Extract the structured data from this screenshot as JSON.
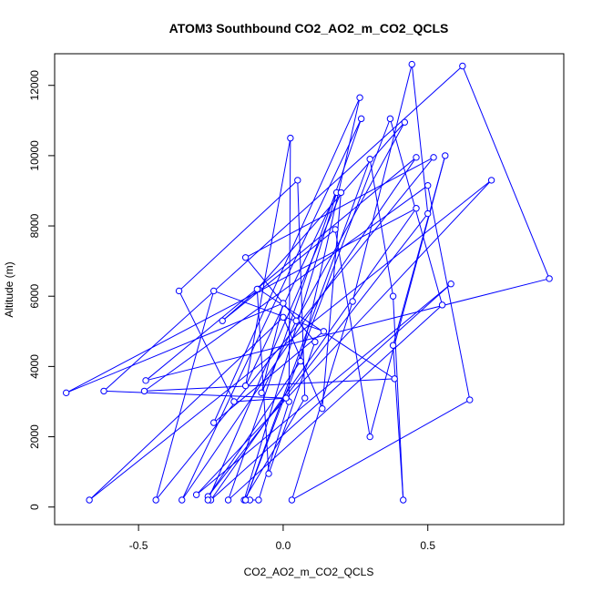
{
  "chart_data": {
    "type": "line",
    "title": "ATOM3 Southbound CO2_AO2_m_CO2_QCLS",
    "xlabel": "CO2_AO2_m_CO2_QCLS",
    "ylabel": "Altitude (m)",
    "xlim": [
      -0.79,
      0.97
    ],
    "ylim": [
      -500,
      12900
    ],
    "xticks": [
      -0.5,
      0.0,
      0.5
    ],
    "xtick_labels": [
      "-0.5",
      "0.0",
      "0.5"
    ],
    "yticks": [
      0,
      2000,
      4000,
      6000,
      8000,
      10000,
      12000
    ],
    "ytick_labels": [
      "0",
      "2000",
      "4000",
      "6000",
      "8000",
      "10000",
      "12000"
    ],
    "grid": false,
    "marker": "open-circle",
    "series_color": "#0000ff",
    "series": [
      {
        "points": [
          [
            -0.115,
            200
          ],
          [
            -0.085,
            200
          ],
          [
            0.02,
            3000
          ],
          [
            0.025,
            10500
          ],
          [
            -0.13,
            3450
          ],
          [
            0.185,
            8950
          ],
          [
            -0.135,
            200
          ],
          [
            0.075,
            3100
          ],
          [
            0.05,
            9300
          ],
          [
            -0.36,
            6150
          ],
          [
            -0.17,
            3000
          ],
          [
            0.01,
            3100
          ],
          [
            -0.62,
            3300
          ],
          [
            0.62,
            12550
          ],
          [
            0.92,
            6500
          ],
          [
            -0.475,
            3600
          ],
          [
            0.46,
            9950
          ],
          [
            -0.35,
            200
          ],
          [
            0.27,
            11050
          ],
          [
            -0.19,
            200
          ],
          [
            0.55,
            5750
          ],
          [
            0.37,
            11050
          ],
          [
            -0.13,
            200
          ],
          [
            0.3,
            9900
          ],
          [
            0.38,
            6000
          ],
          [
            0.415,
            200
          ],
          [
            0.38,
            4600
          ],
          [
            0.56,
            10000
          ],
          [
            0.3,
            2000
          ],
          [
            0.18,
            7900
          ],
          [
            -0.21,
            5300
          ],
          [
            -0.085,
            6200
          ],
          [
            0.385,
            3650
          ],
          [
            -0.48,
            3300
          ],
          [
            0.5,
            9150
          ],
          [
            0.645,
            3050
          ],
          [
            0.03,
            200
          ],
          [
            0.24,
            5850
          ],
          [
            0.445,
            12600
          ],
          [
            0.5,
            8350
          ],
          [
            -0.26,
            300
          ],
          [
            0.06,
            4150
          ],
          [
            0.265,
            11650
          ],
          [
            -0.24,
            2400
          ],
          [
            0.14,
            5000
          ],
          [
            -0.24,
            6150
          ],
          [
            -0.44,
            200
          ],
          [
            0.52,
            9950
          ],
          [
            -0.13,
            7100
          ],
          [
            0.11,
            4700
          ],
          [
            -0.05,
            950
          ],
          [
            -0.09,
            6200
          ],
          [
            0.42,
            10950
          ],
          [
            0.045,
            5300
          ],
          [
            -0.075,
            3250
          ],
          [
            0.0,
            5800
          ],
          [
            -0.75,
            3250
          ],
          [
            0.46,
            8500
          ],
          [
            -0.25,
            200
          ],
          [
            0.58,
            6350
          ],
          [
            -0.3,
            350
          ],
          [
            0.72,
            9300
          ],
          [
            -0.67,
            200
          ],
          [
            0.0,
            5400
          ],
          [
            0.135,
            2800
          ],
          [
            0.2,
            8950
          ],
          [
            -0.26,
            200
          ]
        ]
      }
    ]
  }
}
